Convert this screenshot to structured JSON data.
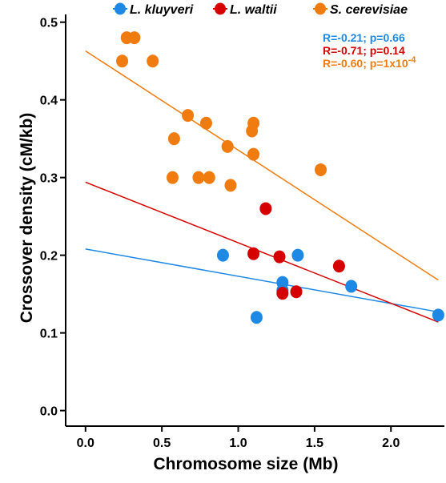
{
  "chart_data": {
    "type": "scatter",
    "title": "",
    "xlabel": "Chromosome size (Mb)",
    "ylabel": "Crossover density (cM/kb)",
    "xlim": [
      -0.13,
      2.35
    ],
    "ylim": [
      -0.02,
      0.51
    ],
    "xticks": [
      0.0,
      0.5,
      1.0,
      1.5,
      2.0
    ],
    "xtick_labels": [
      "0.0",
      "0.5",
      "1.0",
      "1.5",
      "2.0"
    ],
    "yticks": [
      0.0,
      0.1,
      0.2,
      0.3,
      0.4,
      0.5
    ],
    "ytick_labels": [
      "0.0",
      "0.1",
      "0.2",
      "0.3",
      "0.4",
      "0.5"
    ],
    "grid": false,
    "legend_position": "top",
    "series": [
      {
        "name": "L. kluyveri",
        "color": "#1e88e5",
        "points": [
          [
            0.9,
            0.2
          ],
          [
            1.12,
            0.12
          ],
          [
            1.29,
            0.165
          ],
          [
            1.29,
            0.155
          ],
          [
            1.39,
            0.2
          ],
          [
            1.74,
            0.16
          ],
          [
            2.31,
            0.123
          ]
        ],
        "fit": {
          "x": [
            0.0,
            2.31
          ],
          "y": [
            0.208,
            0.127
          ]
        }
      },
      {
        "name": "L. waltii",
        "color": "#d50000",
        "points": [
          [
            1.1,
            0.202
          ],
          [
            1.18,
            0.26
          ],
          [
            1.27,
            0.198
          ],
          [
            1.29,
            0.151
          ],
          [
            1.38,
            0.153
          ],
          [
            1.66,
            0.186
          ]
        ],
        "fit": {
          "x": [
            0.0,
            2.31
          ],
          "y": [
            0.294,
            0.114
          ]
        }
      },
      {
        "name": "S. cerevisiae",
        "color": "#f07c10",
        "points": [
          [
            0.24,
            0.45
          ],
          [
            0.27,
            0.48
          ],
          [
            0.32,
            0.48
          ],
          [
            0.44,
            0.45
          ],
          [
            0.67,
            0.38
          ],
          [
            0.58,
            0.35
          ],
          [
            0.79,
            0.37
          ],
          [
            0.57,
            0.3
          ],
          [
            0.74,
            0.3
          ],
          [
            0.81,
            0.3
          ],
          [
            0.93,
            0.34
          ],
          [
            0.95,
            0.29
          ],
          [
            1.09,
            0.36
          ],
          [
            1.1,
            0.37
          ],
          [
            1.1,
            0.33
          ],
          [
            1.54,
            0.31
          ]
        ],
        "fit": {
          "x": [
            0.0,
            2.31
          ],
          "y": [
            0.463,
            0.168
          ]
        }
      }
    ],
    "annotations": [
      {
        "text": "R=-0.21; p=0.66",
        "color": "#1e88e5"
      },
      {
        "text": "R=-0.71; p=0.14",
        "color": "#d50000"
      },
      {
        "text": "R=-0.60; p=1x10",
        "sup": "-4",
        "color": "#f07c10"
      }
    ]
  }
}
